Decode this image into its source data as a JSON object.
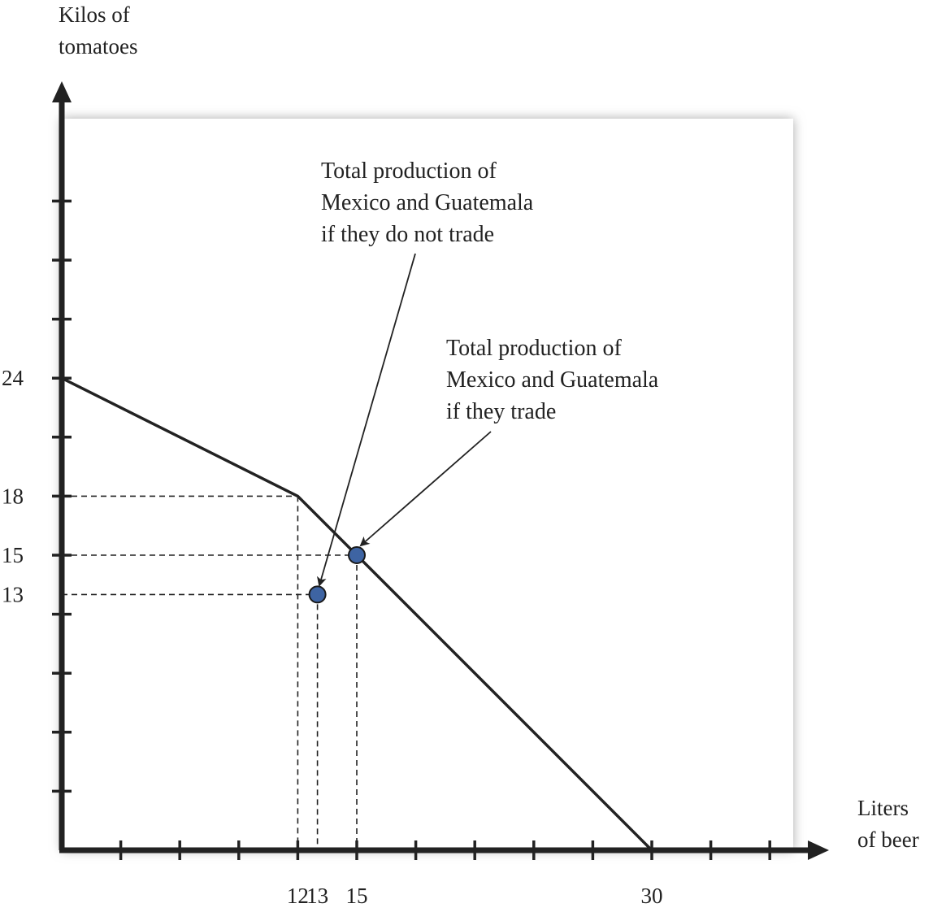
{
  "chart_data": {
    "type": "line",
    "title": "",
    "xlabel": [
      "Liters",
      "of beer"
    ],
    "ylabel": [
      "Kilos of",
      "tomatoes"
    ],
    "xlim": [
      0,
      36
    ],
    "ylim": [
      0,
      36
    ],
    "x_tick_step": 3,
    "y_tick_step": 3,
    "x_tick_labels": [
      {
        "value": 12,
        "label": "12"
      },
      {
        "value": 13,
        "label": "13"
      },
      {
        "value": 15,
        "label": "15"
      },
      {
        "value": 30,
        "label": "30"
      }
    ],
    "y_tick_labels": [
      {
        "value": 24,
        "label": "24"
      },
      {
        "value": 18,
        "label": "18"
      },
      {
        "value": 15,
        "label": "15"
      },
      {
        "value": 13,
        "label": "13"
      }
    ],
    "series": [
      {
        "x": [
          0,
          12,
          30
        ],
        "y": [
          24,
          18,
          0
        ]
      }
    ],
    "guides": [
      {
        "x": 12,
        "y": 18
      },
      {
        "x": 13,
        "y": 13
      },
      {
        "x": 15,
        "y": 15
      }
    ],
    "points": [
      {
        "x": 13,
        "y": 13,
        "color": "#3e64a3"
      },
      {
        "x": 15,
        "y": 15,
        "color": "#3e64a3"
      }
    ],
    "annotations": [
      {
        "lines": [
          "Total production of",
          "Mexico and Guatemala",
          "if they do not trade"
        ],
        "target": {
          "x": 13,
          "y": 13
        }
      },
      {
        "lines": [
          "Total production of",
          "Mexico and Guatemala",
          "if they trade"
        ],
        "target": {
          "x": 15,
          "y": 15
        }
      }
    ],
    "grid": false,
    "colors": {
      "axis": "#222222",
      "line": "#222222",
      "point_fill": "#3e64a3",
      "panel_shadow": "#bbbbbb"
    }
  }
}
